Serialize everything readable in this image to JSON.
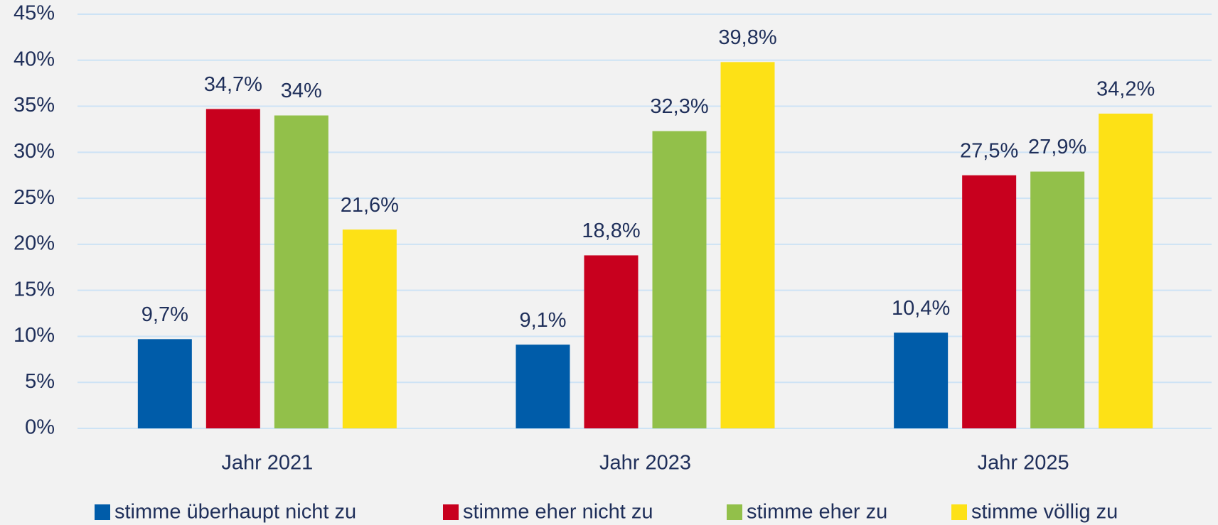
{
  "chart_data": {
    "type": "bar",
    "categories": [
      "Jahr 2021",
      "Jahr 2023",
      "Jahr 2025"
    ],
    "series": [
      {
        "name": "stimme überhaupt nicht zu",
        "color": "#005ca9",
        "values": [
          9.7,
          9.1,
          10.4
        ],
        "value_labels": [
          "9,7%",
          "9,1%",
          "10,4%"
        ]
      },
      {
        "name": "stimme eher nicht zu",
        "color": "#c8001e",
        "values": [
          34.7,
          18.8,
          27.5
        ],
        "value_labels": [
          "34,7%",
          "18,8%",
          "27,5%"
        ]
      },
      {
        "name": "stimme eher zu",
        "color": "#92c04a",
        "values": [
          34,
          32.3,
          27.9
        ],
        "value_labels": [
          "34%",
          "32,3%",
          "27,9%"
        ]
      },
      {
        "name": "stimme völlig zu",
        "color": "#fde116",
        "values": [
          21.6,
          39.8,
          34.2
        ],
        "value_labels": [
          "21,6%",
          "39,8%",
          "34,2%"
        ]
      }
    ],
    "ylim": [
      0,
      45
    ],
    "yticks": [
      {
        "value": 0,
        "label": "0%"
      },
      {
        "value": 5,
        "label": "5%"
      },
      {
        "value": 10,
        "label": "10%"
      },
      {
        "value": 15,
        "label": "15%"
      },
      {
        "value": 20,
        "label": "20%"
      },
      {
        "value": 25,
        "label": "25%"
      },
      {
        "value": 30,
        "label": "30%"
      },
      {
        "value": 35,
        "label": "35%"
      },
      {
        "value": 40,
        "label": "40%"
      },
      {
        "value": 45,
        "label": "45%"
      }
    ],
    "grid": true,
    "legend": "bottom"
  }
}
